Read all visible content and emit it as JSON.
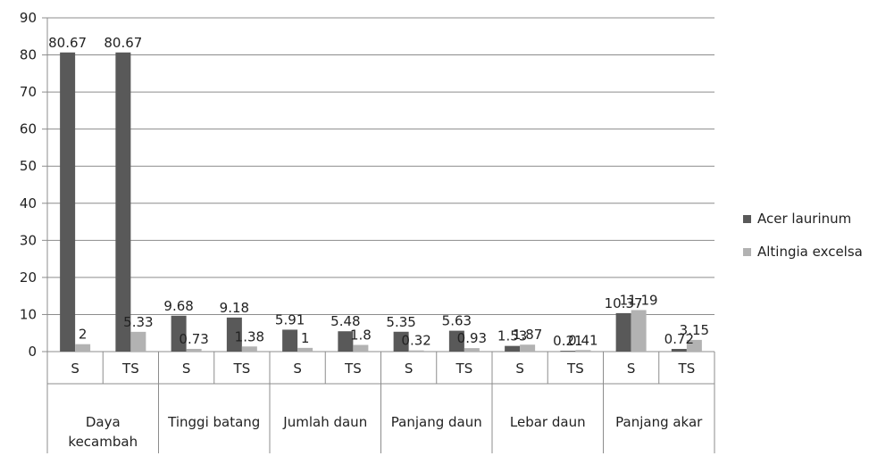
{
  "chart_data": {
    "type": "bar",
    "title": "",
    "xlabel": "",
    "ylabel": "",
    "ylim": [
      0,
      90
    ],
    "yticks": [
      0,
      10,
      20,
      30,
      40,
      50,
      60,
      70,
      80,
      90
    ],
    "grid": "horizontal",
    "legend_position": "right",
    "groups": [
      {
        "label": "Daya kecambah",
        "lines": [
          "Daya",
          "kecambah"
        ]
      },
      {
        "label": "Tinggi batang",
        "lines": [
          "Tinggi batang"
        ]
      },
      {
        "label": "Jumlah daun",
        "lines": [
          "Jumlah daun"
        ]
      },
      {
        "label": "Panjang daun",
        "lines": [
          "Panjang daun"
        ]
      },
      {
        "label": "Lebar daun",
        "lines": [
          "Lebar daun"
        ]
      },
      {
        "label": "Panjang akar",
        "lines": [
          "Panjang akar"
        ]
      }
    ],
    "categories": [
      "S",
      "TS",
      "S",
      "TS",
      "S",
      "TS",
      "S",
      "TS",
      "S",
      "TS",
      "S",
      "TS"
    ],
    "series": [
      {
        "name": "Acer laurinum",
        "color": "#595959",
        "values": [
          80.67,
          80.67,
          9.68,
          9.18,
          5.91,
          5.48,
          5.35,
          5.63,
          1.53,
          0.21,
          10.37,
          0.72
        ],
        "labels": [
          "80.67",
          "80.67",
          "9.68",
          "9.18",
          "5.91",
          "5.48",
          "5.35",
          "5.63",
          "1.53",
          "0.21",
          "10.37",
          "0.72"
        ]
      },
      {
        "name": "Altingia excelsa",
        "color": "#b2b2b2",
        "values": [
          2,
          5.33,
          0.73,
          1.38,
          1,
          1.8,
          0.32,
          0.93,
          1.87,
          0.41,
          11.19,
          3.15
        ],
        "labels": [
          "2",
          "5.33",
          "0.73",
          "1.38",
          "1",
          "1.8",
          "0.32",
          "0.93",
          "1.87",
          "0.41",
          "11.19",
          "3.15"
        ]
      }
    ]
  }
}
